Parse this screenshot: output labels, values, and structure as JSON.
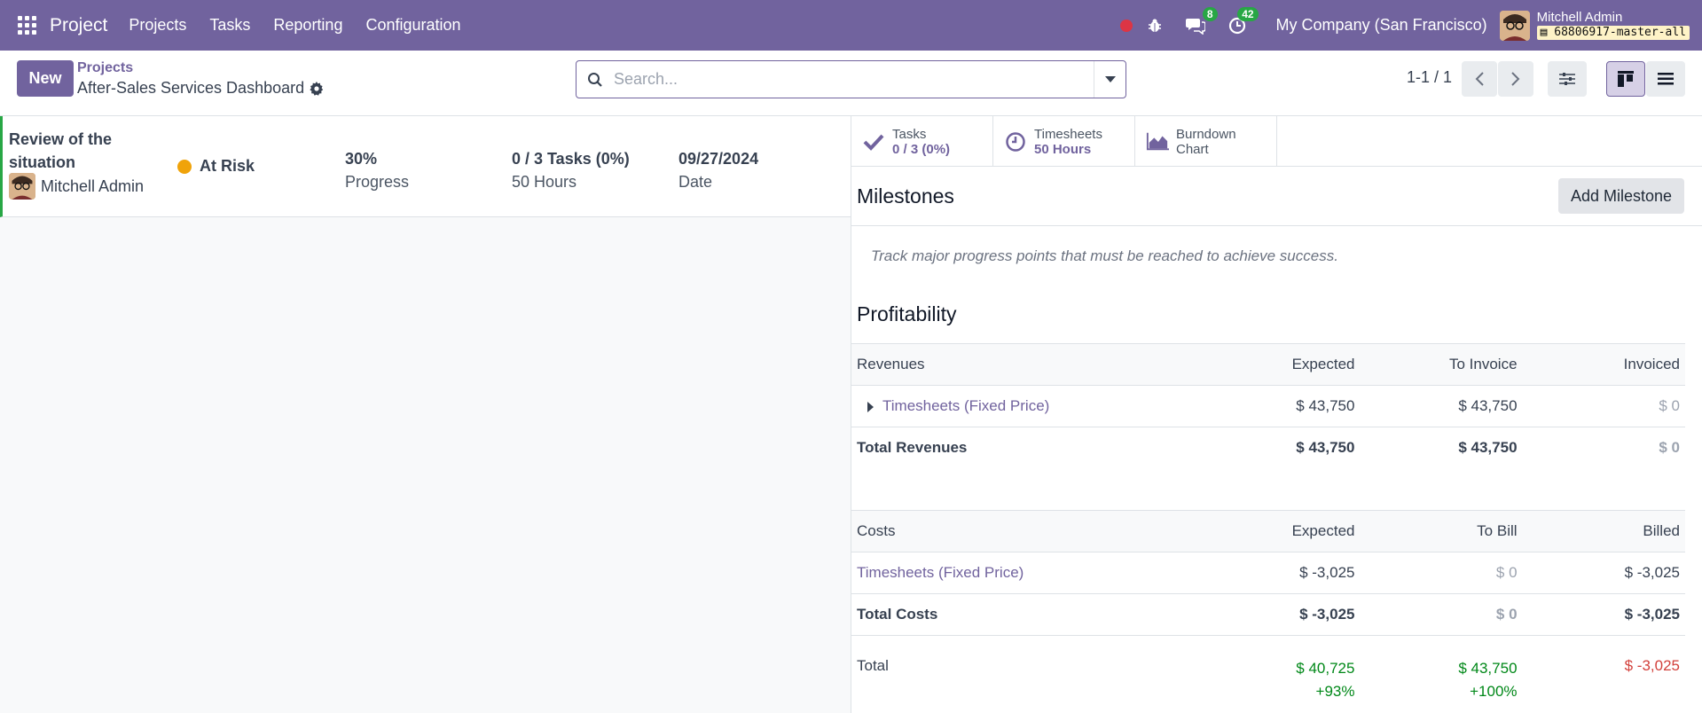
{
  "navbar": {
    "brand": "Project",
    "menu": [
      "Projects",
      "Tasks",
      "Reporting",
      "Configuration"
    ],
    "messages_count": "8",
    "activities_count": "42",
    "company": "My Company (San Francisco)",
    "user_name": "Mitchell Admin",
    "db_name": "68806917-master-all"
  },
  "control": {
    "new_label": "New",
    "breadcrumb_parent": "Projects",
    "breadcrumb_current": "After-Sales Services Dashboard",
    "search_placeholder": "Search...",
    "pager": "1-1 / 1"
  },
  "update": {
    "title": "Review of the situation",
    "author": "Mitchell Admin",
    "status": "At Risk",
    "status_color": "#f0a30a",
    "progress_value": "30%",
    "progress_label": "Progress",
    "tasks_value": "0 / 3 Tasks (0%)",
    "hours_label": "50 Hours",
    "date_value": "09/27/2024",
    "date_label": "Date"
  },
  "stat_buttons": {
    "tasks_label": "Tasks",
    "tasks_value": "0 / 3 (0%)",
    "timesheets_label": "Timesheets",
    "timesheets_value": "50 Hours",
    "burndown_line1": "Burndown",
    "burndown_line2": "Chart"
  },
  "milestones": {
    "title": "Milestones",
    "add_label": "Add Milestone",
    "help": "Track major progress points that must be reached to achieve success."
  },
  "profitability": {
    "title": "Profitability",
    "revenues_header": [
      "Revenues",
      "Expected",
      "To Invoice",
      "Invoiced"
    ],
    "revenues_row": [
      "Timesheets (Fixed Price)",
      "$ 43,750",
      "$ 43,750",
      "$ 0"
    ],
    "revenues_total": [
      "Total Revenues",
      "$ 43,750",
      "$ 43,750",
      "$ 0"
    ],
    "costs_header": [
      "Costs",
      "Expected",
      "To Bill",
      "Billed"
    ],
    "costs_row": [
      "Timesheets (Fixed Price)",
      "$ -3,025",
      "$ 0",
      "$ -3,025"
    ],
    "costs_total": [
      "Total Costs",
      "$ -3,025",
      "$ 0",
      "$ -3,025"
    ],
    "total": [
      "Total",
      "$ 40,725",
      "$ 43,750",
      "$ -3,025"
    ],
    "total_pct": [
      "+93%",
      "+100%"
    ]
  },
  "colors": {
    "brand": "#71639e",
    "positive": "#008818",
    "negative": "#d23f3a",
    "on_track": "#28a745"
  }
}
